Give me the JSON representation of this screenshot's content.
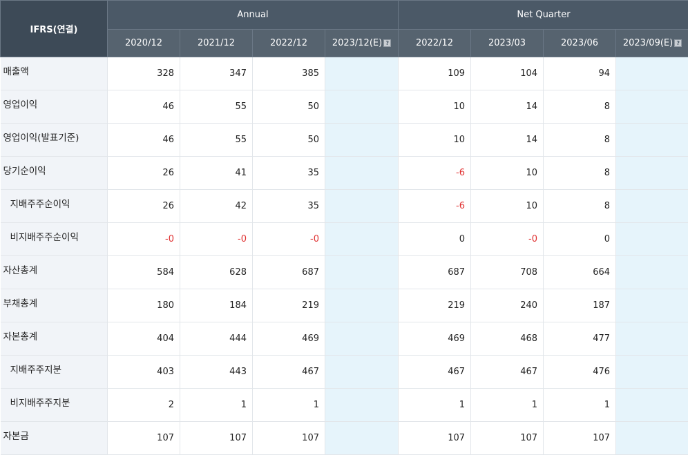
{
  "header": {
    "corner": "IFRS(연결)",
    "groups": [
      "Annual",
      "Net Quarter"
    ],
    "annual_periods": [
      "2020/12",
      "2021/12",
      "2022/12",
      "2023/12(E)"
    ],
    "quarter_periods": [
      "2022/12",
      "2023/03",
      "2023/06",
      "2023/09(E)"
    ],
    "info_icon": "?"
  },
  "rows": [
    {
      "label": "매출액",
      "sub": false,
      "annual": [
        "328",
        "347",
        "385",
        ""
      ],
      "quarter": [
        "109",
        "104",
        "94",
        ""
      ]
    },
    {
      "label": "영업이익",
      "sub": false,
      "annual": [
        "46",
        "55",
        "50",
        ""
      ],
      "quarter": [
        "10",
        "14",
        "8",
        ""
      ]
    },
    {
      "label": "영업이익(발표기준)",
      "sub": false,
      "annual": [
        "46",
        "55",
        "50",
        ""
      ],
      "quarter": [
        "10",
        "14",
        "8",
        ""
      ]
    },
    {
      "label": "당기순이익",
      "sub": false,
      "annual": [
        "26",
        "41",
        "35",
        ""
      ],
      "quarter": [
        "-6",
        "10",
        "8",
        ""
      ]
    },
    {
      "label": "지배주주순이익",
      "sub": true,
      "annual": [
        "26",
        "42",
        "35",
        ""
      ],
      "quarter": [
        "-6",
        "10",
        "8",
        ""
      ]
    },
    {
      "label": "비지배주주순이익",
      "sub": true,
      "annual": [
        "-0",
        "-0",
        "-0",
        ""
      ],
      "quarter": [
        "0",
        "-0",
        "0",
        ""
      ]
    },
    {
      "label": "자산총계",
      "sub": false,
      "annual": [
        "584",
        "628",
        "687",
        ""
      ],
      "quarter": [
        "687",
        "708",
        "664",
        ""
      ]
    },
    {
      "label": "부채총계",
      "sub": false,
      "annual": [
        "180",
        "184",
        "219",
        ""
      ],
      "quarter": [
        "219",
        "240",
        "187",
        ""
      ]
    },
    {
      "label": "자본총계",
      "sub": false,
      "annual": [
        "404",
        "444",
        "469",
        ""
      ],
      "quarter": [
        "469",
        "468",
        "477",
        ""
      ]
    },
    {
      "label": "지배주주지분",
      "sub": true,
      "annual": [
        "403",
        "443",
        "467",
        ""
      ],
      "quarter": [
        "467",
        "467",
        "476",
        ""
      ]
    },
    {
      "label": "비지배주주지분",
      "sub": true,
      "annual": [
        "2",
        "1",
        "1",
        ""
      ],
      "quarter": [
        "1",
        "1",
        "1",
        ""
      ]
    },
    {
      "label": "자본금",
      "sub": false,
      "annual": [
        "107",
        "107",
        "107",
        ""
      ],
      "quarter": [
        "107",
        "107",
        "107",
        ""
      ]
    }
  ],
  "colors": {
    "header_bg": "#4b5967",
    "estimate_bg": "#e6f4fb",
    "label_bg": "#f1f4f8",
    "negative": "#e03131"
  }
}
